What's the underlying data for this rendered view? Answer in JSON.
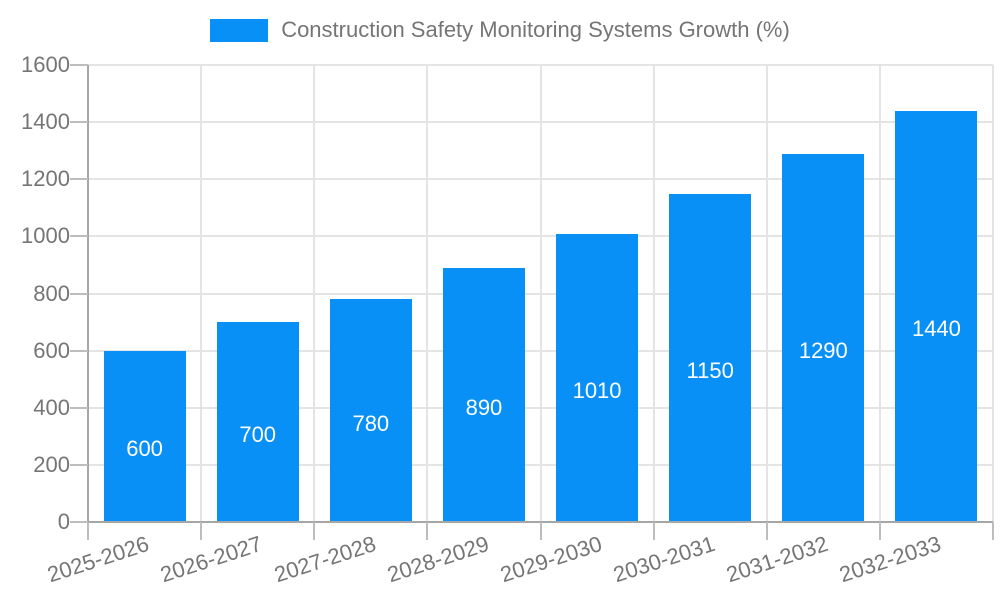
{
  "legend": {
    "label": "Construction Safety Monitoring Systems Growth (%)"
  },
  "chart_data": {
    "type": "bar",
    "title": "Construction Safety Monitoring Systems Growth (%)",
    "categories": [
      "2025-2026",
      "2026-2027",
      "2027-2028",
      "2028-2029",
      "2029-2030",
      "2030-2031",
      "2031-2032",
      "2032-2033"
    ],
    "values": [
      600,
      700,
      780,
      890,
      1010,
      1150,
      1290,
      1440
    ],
    "bar_value_labels": [
      "600",
      "700",
      "780",
      "890",
      "1010",
      "1150",
      "1290",
      "1440"
    ],
    "xlabel": "",
    "ylabel": "",
    "ylim": [
      0,
      1600
    ],
    "yticks": [
      0,
      200,
      400,
      600,
      800,
      1000,
      1200,
      1400,
      1600
    ],
    "ytick_labels": [
      "0",
      "200",
      "400",
      "600",
      "800",
      "1000",
      "1200",
      "1400",
      "1600"
    ],
    "grid": true,
    "legend_position": "top"
  },
  "colors": {
    "bar": "#0990f6",
    "bar_label_text": "#ffffff",
    "tick_label_text": "#757575",
    "legend_text": "#757575",
    "gridline": "#e4e4e4",
    "axis_line": "#a6a6a6",
    "tick_mark": "#bdbdbd",
    "background": "#ffffff"
  }
}
